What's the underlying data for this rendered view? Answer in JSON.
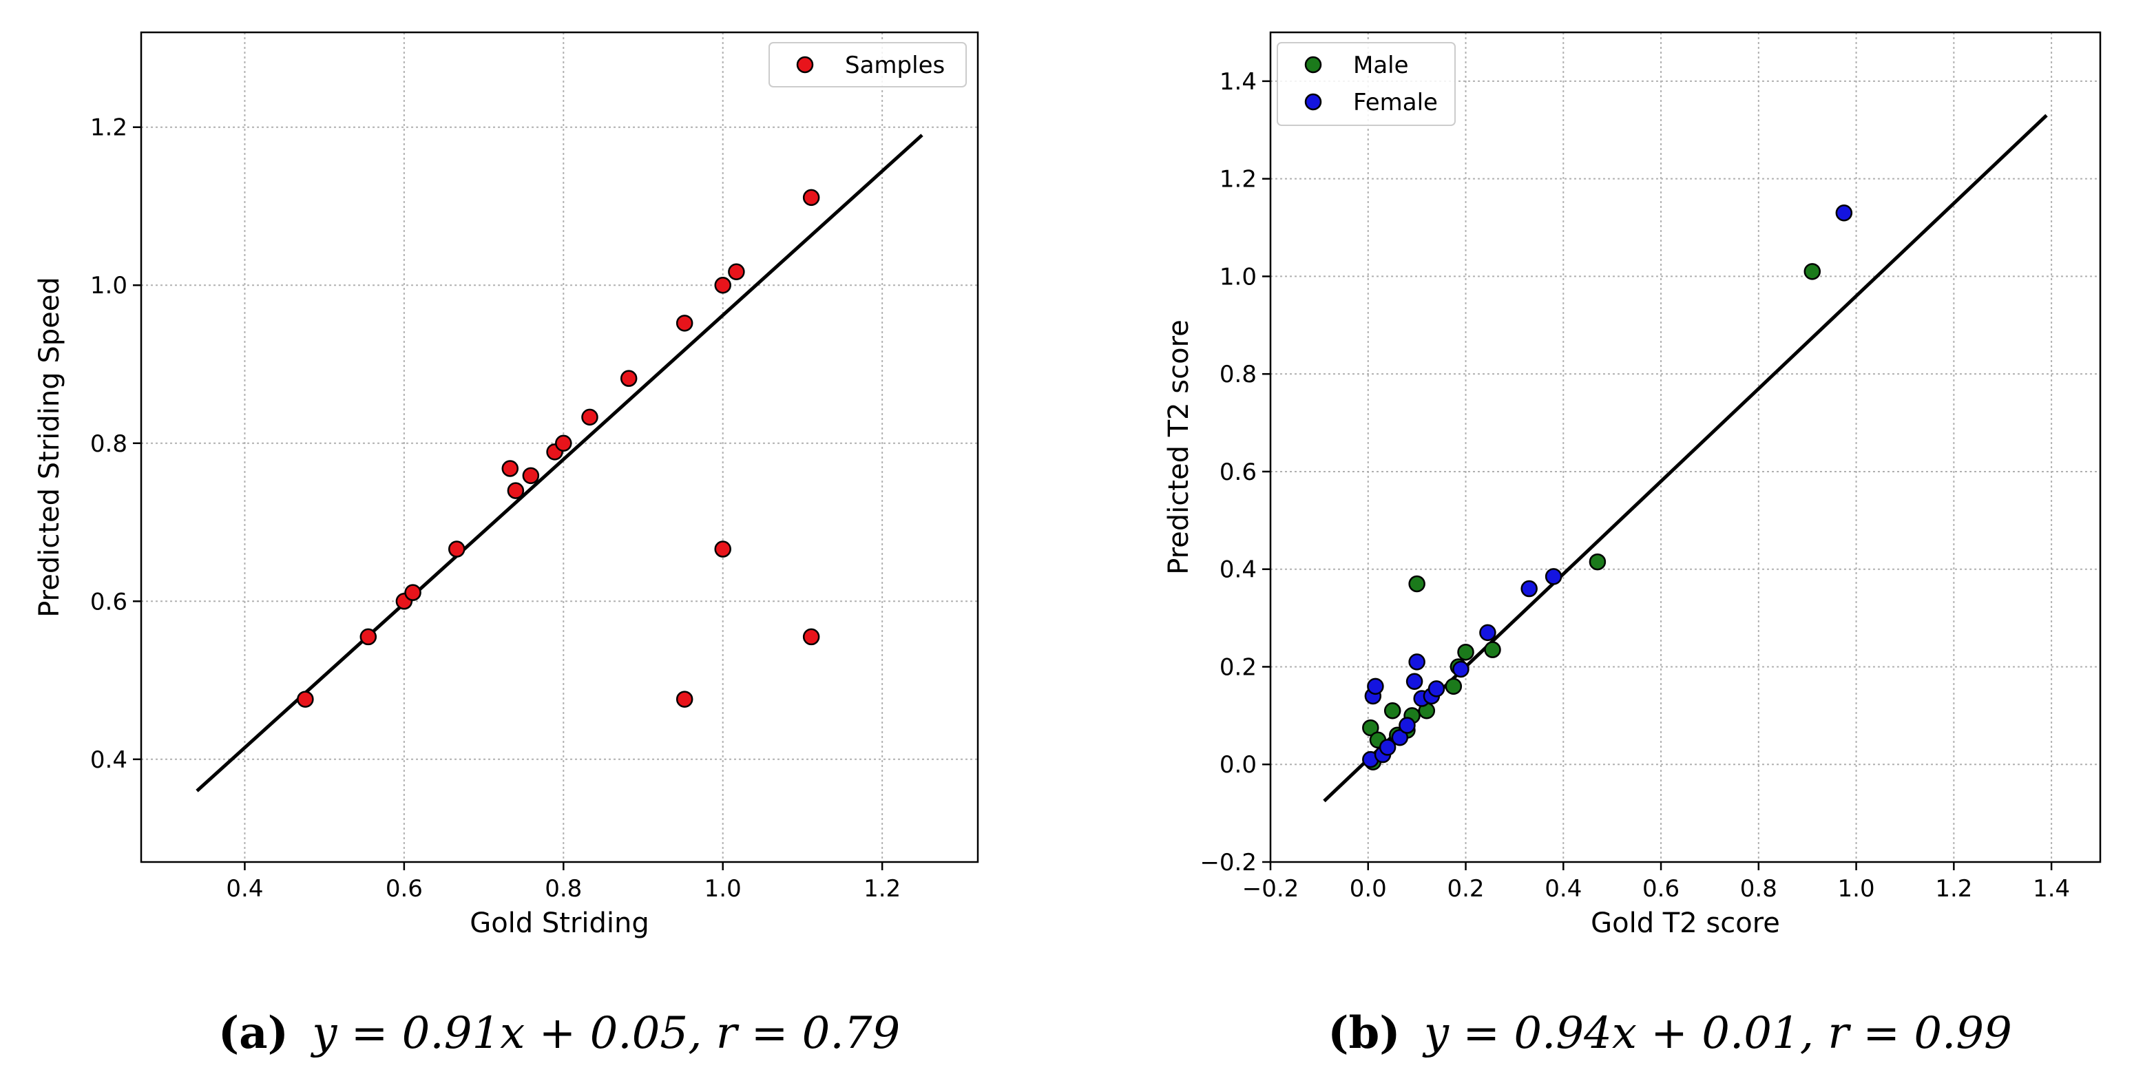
{
  "chart_data": [
    {
      "type": "scatter",
      "xlabel": "Gold Striding",
      "ylabel": "Predicted Striding Speed",
      "xlim": [
        0.27,
        1.32
      ],
      "ylim": [
        0.27,
        1.32
      ],
      "xticks": [
        0.4,
        0.6,
        0.8,
        1.0,
        1.2
      ],
      "yticks": [
        0.4,
        0.6,
        0.8,
        1.0,
        1.2
      ],
      "xtick_labels": [
        "0.4",
        "0.6",
        "0.8",
        "1.0",
        "1.2"
      ],
      "ytick_labels": [
        "0.4",
        "0.6",
        "0.8",
        "1.0",
        "1.2"
      ],
      "grid": true,
      "legend_position": "top-right",
      "series": [
        {
          "name": "Samples",
          "color": "#e8141b",
          "points": [
            [
              0.476,
              0.476
            ],
            [
              0.555,
              0.555
            ],
            [
              0.6,
              0.6
            ],
            [
              0.611,
              0.611
            ],
            [
              0.666,
              0.666
            ],
            [
              0.733,
              0.768
            ],
            [
              0.74,
              0.74
            ],
            [
              0.759,
              0.759
            ],
            [
              0.789,
              0.789
            ],
            [
              0.8,
              0.8
            ],
            [
              0.833,
              0.833
            ],
            [
              0.882,
              0.882
            ],
            [
              0.952,
              0.952
            ],
            [
              1.0,
              1.0
            ],
            [
              1.017,
              1.017
            ],
            [
              1.111,
              1.111
            ],
            [
              1.0,
              0.666
            ],
            [
              0.952,
              0.476
            ],
            [
              1.111,
              0.555
            ]
          ]
        }
      ],
      "fit_line": {
        "x": [
          0.34,
          1.25
        ],
        "y": [
          0.36,
          1.19
        ]
      },
      "caption": {
        "label": "(a)",
        "equation": "y = 0.91x + 0.05, r = 0.79"
      }
    },
    {
      "type": "scatter",
      "xlabel": "Gold T2 score",
      "ylabel": "Predicted T2 score",
      "xlim": [
        -0.2,
        1.5
      ],
      "ylim": [
        -0.2,
        1.5
      ],
      "xticks": [
        -0.2,
        0.0,
        0.2,
        0.4,
        0.6,
        0.8,
        1.0,
        1.2,
        1.4
      ],
      "yticks": [
        -0.2,
        0.0,
        0.2,
        0.4,
        0.6,
        0.8,
        1.0,
        1.2,
        1.4
      ],
      "xtick_labels": [
        "−0.2",
        "0.0",
        "0.2",
        "0.4",
        "0.6",
        "0.8",
        "1.0",
        "1.2",
        "1.4"
      ],
      "ytick_labels": [
        "−0.2",
        "0.0",
        "0.2",
        "0.4",
        "0.6",
        "0.8",
        "1.0",
        "1.2",
        "1.4"
      ],
      "grid": true,
      "legend_position": "top-left",
      "series": [
        {
          "name": "Male",
          "color": "#1b7a1b",
          "points": [
            [
              0.005,
              0.075
            ],
            [
              0.01,
              0.005
            ],
            [
              0.02,
              0.05
            ],
            [
              0.05,
              0.11
            ],
            [
              0.06,
              0.06
            ],
            [
              0.08,
              0.07
            ],
            [
              0.09,
              0.1
            ],
            [
              0.1,
              0.37
            ],
            [
              0.12,
              0.11
            ],
            [
              0.175,
              0.16
            ],
            [
              0.185,
              0.2
            ],
            [
              0.2,
              0.23
            ],
            [
              0.255,
              0.235
            ],
            [
              0.47,
              0.415
            ],
            [
              0.91,
              1.01
            ]
          ]
        },
        {
          "name": "Female",
          "color": "#1414e0",
          "points": [
            [
              0.005,
              0.01
            ],
            [
              0.01,
              0.14
            ],
            [
              0.015,
              0.16
            ],
            [
              0.03,
              0.02
            ],
            [
              0.04,
              0.035
            ],
            [
              0.065,
              0.055
            ],
            [
              0.08,
              0.08
            ],
            [
              0.095,
              0.17
            ],
            [
              0.1,
              0.21
            ],
            [
              0.11,
              0.135
            ],
            [
              0.13,
              0.14
            ],
            [
              0.14,
              0.155
            ],
            [
              0.19,
              0.195
            ],
            [
              0.245,
              0.27
            ],
            [
              0.33,
              0.36
            ],
            [
              0.38,
              0.385
            ],
            [
              0.975,
              1.13
            ]
          ]
        }
      ],
      "fit_line": {
        "x": [
          -0.09,
          1.39
        ],
        "y": [
          -0.075,
          1.33
        ]
      },
      "caption": {
        "label": "(b)",
        "equation": "y = 0.94x + 0.01, r = 0.99"
      }
    }
  ]
}
